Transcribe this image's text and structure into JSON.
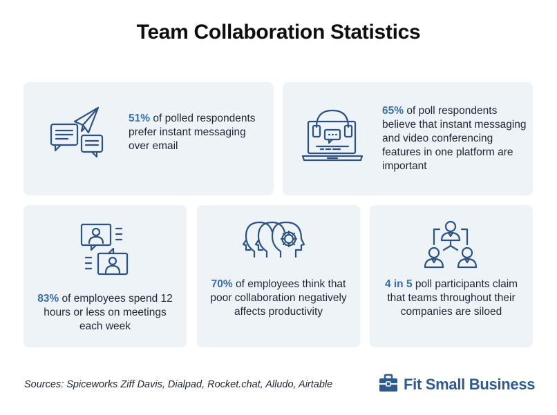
{
  "title": "Team Collaboration Statistics",
  "colors": {
    "accent": "#3a6ea5",
    "card_bg": "#eef3f8",
    "icon_stroke": "#2c5282",
    "text": "#1c2735"
  },
  "cards": [
    {
      "icon": "messaging-icon",
      "highlight": "51%",
      "text": " of polled respondents prefer instant messaging over email"
    },
    {
      "icon": "laptop-headset-icon",
      "highlight": "65%",
      "text": " of poll respondents believe that instant messaging and video conferencing features in one platform are important"
    },
    {
      "icon": "video-meeting-icon",
      "highlight": "83%",
      "text": " of employees spend 12 hours or less on meetings each week"
    },
    {
      "icon": "heads-gear-icon",
      "highlight": "70%",
      "text": " of employees think that poor collaboration negatively affects productivity"
    },
    {
      "icon": "team-hierarchy-icon",
      "highlight": "4 in 5",
      "text": " poll participants claim that teams throughout their companies are siloed"
    }
  ],
  "sources": "Sources: Spiceworks Ziff Davis, Dialpad, Rocket.chat, Alludo, Airtable",
  "brand": {
    "name": "Fit Small Business",
    "logo": "briefcase-icon"
  }
}
